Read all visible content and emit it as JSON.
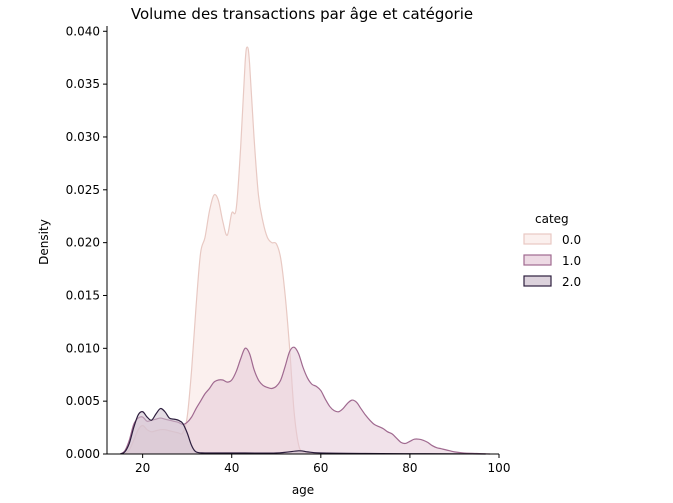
{
  "chart_data": {
    "type": "area",
    "title": "Volume des transactions par âge et catégorie",
    "xlabel": "age",
    "ylabel": "Density",
    "xlim": [
      12,
      100
    ],
    "ylim": [
      0,
      0.0405
    ],
    "x_ticks": [
      20,
      40,
      60,
      80,
      100
    ],
    "y_ticks": [
      0.0,
      0.005,
      0.01,
      0.015,
      0.02,
      0.025,
      0.03,
      0.035,
      0.04
    ],
    "y_tick_labels": [
      "0.000",
      "0.005",
      "0.010",
      "0.015",
      "0.020",
      "0.025",
      "0.030",
      "0.035",
      "0.040"
    ],
    "grid": false,
    "legend": {
      "title": "categ",
      "placement": "right",
      "entries": [
        "0.0",
        "1.0",
        "2.0"
      ]
    },
    "series": [
      {
        "name": "0.0",
        "fill": "#f9ebe8",
        "stroke": "#e8c9c3",
        "points": [
          [
            16,
            0
          ],
          [
            17,
            0.0004
          ],
          [
            18,
            0.0013
          ],
          [
            19,
            0.0023
          ],
          [
            20,
            0.0027
          ],
          [
            21,
            0.0023
          ],
          [
            22,
            0.0021
          ],
          [
            23,
            0.0022
          ],
          [
            24,
            0.0023
          ],
          [
            25,
            0.0023
          ],
          [
            26,
            0.0022
          ],
          [
            27,
            0.0021
          ],
          [
            28,
            0.002
          ],
          [
            29,
            0.002
          ],
          [
            30,
            0.0035
          ],
          [
            31,
            0.008
          ],
          [
            32,
            0.014
          ],
          [
            33,
            0.019
          ],
          [
            34,
            0.0205
          ],
          [
            35,
            0.023
          ],
          [
            36,
            0.0245
          ],
          [
            37,
            0.024
          ],
          [
            38,
            0.022
          ],
          [
            39,
            0.0207
          ],
          [
            40,
            0.0228
          ],
          [
            41,
            0.0232
          ],
          [
            42,
            0.029
          ],
          [
            43,
            0.037
          ],
          [
            43.5,
            0.0385
          ],
          [
            44,
            0.037
          ],
          [
            45,
            0.03
          ],
          [
            46,
            0.0245
          ],
          [
            47,
            0.022
          ],
          [
            48,
            0.0205
          ],
          [
            49,
            0.02
          ],
          [
            50,
            0.0199
          ],
          [
            51,
            0.0185
          ],
          [
            52,
            0.015
          ],
          [
            53,
            0.01
          ],
          [
            54,
            0.004
          ],
          [
            55,
            0.0009
          ],
          [
            56,
            0.0002
          ],
          [
            58,
            0.0001
          ],
          [
            60,
            0
          ]
        ]
      },
      {
        "name": "1.0",
        "fill": "#e6cbd8",
        "stroke": "#a06a90",
        "points": [
          [
            15,
            0
          ],
          [
            16,
            0.0003
          ],
          [
            17,
            0.0013
          ],
          [
            18,
            0.0028
          ],
          [
            19,
            0.0034
          ],
          [
            20,
            0.0035
          ],
          [
            21,
            0.0031
          ],
          [
            22,
            0.0032
          ],
          [
            23,
            0.0033
          ],
          [
            24,
            0.0034
          ],
          [
            25,
            0.0033
          ],
          [
            26,
            0.0032
          ],
          [
            27,
            0.0031
          ],
          [
            28,
            0.003
          ],
          [
            29,
            0.0028
          ],
          [
            30,
            0.003
          ],
          [
            31,
            0.0035
          ],
          [
            32,
            0.0043
          ],
          [
            33,
            0.005
          ],
          [
            34,
            0.0057
          ],
          [
            35,
            0.0062
          ],
          [
            36,
            0.0068
          ],
          [
            37,
            0.007
          ],
          [
            38,
            0.007
          ],
          [
            39,
            0.0068
          ],
          [
            40,
            0.007
          ],
          [
            41,
            0.0078
          ],
          [
            42,
            0.009
          ],
          [
            43,
            0.01
          ],
          [
            44,
            0.0095
          ],
          [
            45,
            0.008
          ],
          [
            46,
            0.007
          ],
          [
            47,
            0.0065
          ],
          [
            48,
            0.0063
          ],
          [
            49,
            0.0062
          ],
          [
            50,
            0.0064
          ],
          [
            51,
            0.007
          ],
          [
            52,
            0.0083
          ],
          [
            53,
            0.0097
          ],
          [
            54,
            0.0101
          ],
          [
            55,
            0.0095
          ],
          [
            56,
            0.0082
          ],
          [
            57,
            0.0072
          ],
          [
            58,
            0.0066
          ],
          [
            59,
            0.0064
          ],
          [
            60,
            0.006
          ],
          [
            61,
            0.0052
          ],
          [
            62,
            0.0045
          ],
          [
            63,
            0.0041
          ],
          [
            64,
            0.004
          ],
          [
            65,
            0.0043
          ],
          [
            66,
            0.0048
          ],
          [
            67,
            0.0051
          ],
          [
            68,
            0.0049
          ],
          [
            69,
            0.0043
          ],
          [
            70,
            0.0037
          ],
          [
            71,
            0.0032
          ],
          [
            72,
            0.0028
          ],
          [
            73,
            0.0026
          ],
          [
            74,
            0.0024
          ],
          [
            75,
            0.0021
          ],
          [
            76,
            0.0019
          ],
          [
            77,
            0.0015
          ],
          [
            78,
            0.0011
          ],
          [
            79,
            0.001
          ],
          [
            80,
            0.0012
          ],
          [
            81,
            0.0014
          ],
          [
            82,
            0.0014
          ],
          [
            83,
            0.0013
          ],
          [
            84,
            0.0011
          ],
          [
            85,
            0.0008
          ],
          [
            86,
            0.0006
          ],
          [
            87,
            0.0005
          ],
          [
            88,
            0.0004
          ],
          [
            89,
            0.0003
          ],
          [
            90,
            0.0002
          ],
          [
            92,
            0.0001
          ],
          [
            95,
            5e-05
          ],
          [
            98,
            0
          ]
        ]
      },
      {
        "name": "2.0",
        "fill": "#cdbfcd",
        "stroke": "#2d1e3e",
        "points": [
          [
            15,
            0
          ],
          [
            16,
            0.0002
          ],
          [
            17,
            0.001
          ],
          [
            18,
            0.0025
          ],
          [
            19,
            0.0037
          ],
          [
            20,
            0.004
          ],
          [
            21,
            0.0035
          ],
          [
            22,
            0.0032
          ],
          [
            23,
            0.0038
          ],
          [
            24,
            0.0043
          ],
          [
            25,
            0.004
          ],
          [
            26,
            0.0034
          ],
          [
            27,
            0.0033
          ],
          [
            28,
            0.0032
          ],
          [
            29,
            0.0029
          ],
          [
            30,
            0.002
          ],
          [
            31,
            0.0008
          ],
          [
            32,
            0.0002
          ],
          [
            34,
            0.0001
          ],
          [
            40,
            0.0001
          ],
          [
            50,
            0.0001
          ],
          [
            55,
            0.0003
          ],
          [
            57,
            0.0002
          ],
          [
            60,
            0.0001
          ],
          [
            70,
            5e-05
          ],
          [
            80,
            3e-05
          ],
          [
            90,
            2e-05
          ],
          [
            97,
            0
          ]
        ]
      }
    ]
  }
}
